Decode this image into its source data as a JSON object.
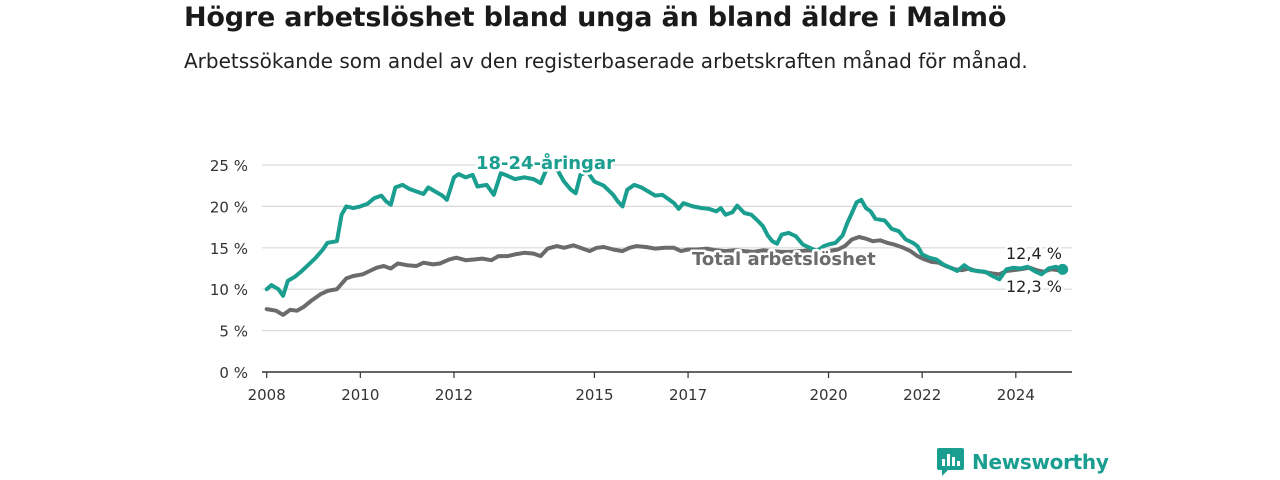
{
  "title": "Högre arbetslöshet bland unga än bland äldre i Malmö",
  "subtitle": "Arbetssökande som andel av den registerbaserade arbetskraften månad för månad.",
  "logo": {
    "text": "Newsworthy",
    "icon": "newsworthy-logo-icon",
    "color": "#1a9e8f"
  },
  "chart_data": {
    "type": "line",
    "title": "Högre arbetslöshet bland unga än bland äldre i Malmö",
    "subtitle": "Arbetssökande som andel av den registerbaserade arbetskraften månad för månad.",
    "xlabel": "",
    "ylabel": "",
    "xlim": [
      2007.9,
      2025.2
    ],
    "ylim": [
      0,
      25
    ],
    "x_ticks": [
      2008,
      2010,
      2012,
      2015,
      2017,
      2020,
      2022,
      2024
    ],
    "y_ticks": [
      {
        "value": 0,
        "label": "0 %"
      },
      {
        "value": 5,
        "label": "5 %"
      },
      {
        "value": 10,
        "label": "10 %"
      },
      {
        "value": 15,
        "label": "15 %"
      },
      {
        "value": 20,
        "label": "20 %"
      },
      {
        "value": 25,
        "label": "25 %"
      }
    ],
    "grid": true,
    "series": [
      {
        "name": "18-24-åringar",
        "color": "#1a9e8f",
        "end_label": "12,4 %",
        "points": [
          [
            2008.0,
            10.0
          ],
          [
            2008.1,
            10.5
          ],
          [
            2008.25,
            10.0
          ],
          [
            2008.35,
            9.2
          ],
          [
            2008.45,
            11.0
          ],
          [
            2008.6,
            11.5
          ],
          [
            2008.75,
            12.2
          ],
          [
            2008.9,
            13.0
          ],
          [
            2009.05,
            13.8
          ],
          [
            2009.2,
            14.8
          ],
          [
            2009.3,
            15.6
          ],
          [
            2009.5,
            15.8
          ],
          [
            2009.6,
            19.0
          ],
          [
            2009.7,
            20.0
          ],
          [
            2009.85,
            19.8
          ],
          [
            2010.0,
            20.0
          ],
          [
            2010.15,
            20.3
          ],
          [
            2010.3,
            21.0
          ],
          [
            2010.45,
            21.3
          ],
          [
            2010.55,
            20.6
          ],
          [
            2010.65,
            20.2
          ],
          [
            2010.75,
            22.3
          ],
          [
            2010.9,
            22.6
          ],
          [
            2011.05,
            22.1
          ],
          [
            2011.2,
            21.8
          ],
          [
            2011.35,
            21.5
          ],
          [
            2011.45,
            22.3
          ],
          [
            2011.6,
            21.8
          ],
          [
            2011.75,
            21.3
          ],
          [
            2011.85,
            20.8
          ],
          [
            2012.0,
            23.5
          ],
          [
            2012.1,
            23.9
          ],
          [
            2012.25,
            23.5
          ],
          [
            2012.4,
            23.8
          ],
          [
            2012.5,
            22.4
          ],
          [
            2012.7,
            22.6
          ],
          [
            2012.85,
            21.4
          ],
          [
            2013.0,
            24.0
          ],
          [
            2013.1,
            23.8
          ],
          [
            2013.3,
            23.3
          ],
          [
            2013.5,
            23.5
          ],
          [
            2013.7,
            23.3
          ],
          [
            2013.85,
            22.8
          ],
          [
            2014.0,
            24.8
          ],
          [
            2014.2,
            24.5
          ],
          [
            2014.35,
            23.0
          ],
          [
            2014.5,
            22.0
          ],
          [
            2014.6,
            21.6
          ],
          [
            2014.7,
            23.8
          ],
          [
            2014.85,
            24.2
          ],
          [
            2015.0,
            23.0
          ],
          [
            2015.2,
            22.5
          ],
          [
            2015.4,
            21.4
          ],
          [
            2015.5,
            20.6
          ],
          [
            2015.6,
            20.0
          ],
          [
            2015.7,
            22.0
          ],
          [
            2015.85,
            22.6
          ],
          [
            2016.0,
            22.3
          ],
          [
            2016.15,
            21.8
          ],
          [
            2016.3,
            21.3
          ],
          [
            2016.45,
            21.4
          ],
          [
            2016.6,
            20.8
          ],
          [
            2016.7,
            20.4
          ],
          [
            2016.8,
            19.7
          ],
          [
            2016.9,
            20.4
          ],
          [
            2017.1,
            20.0
          ],
          [
            2017.3,
            19.8
          ],
          [
            2017.45,
            19.7
          ],
          [
            2017.6,
            19.4
          ],
          [
            2017.7,
            19.8
          ],
          [
            2017.8,
            19.0
          ],
          [
            2017.95,
            19.3
          ],
          [
            2018.05,
            20.1
          ],
          [
            2018.2,
            19.2
          ],
          [
            2018.35,
            19.0
          ],
          [
            2018.5,
            18.2
          ],
          [
            2018.6,
            17.6
          ],
          [
            2018.7,
            16.5
          ],
          [
            2018.8,
            15.8
          ],
          [
            2018.9,
            15.5
          ],
          [
            2019.0,
            16.6
          ],
          [
            2019.15,
            16.8
          ],
          [
            2019.3,
            16.4
          ],
          [
            2019.45,
            15.4
          ],
          [
            2019.6,
            15.0
          ],
          [
            2019.75,
            14.6
          ],
          [
            2019.9,
            15.2
          ],
          [
            2020.0,
            15.4
          ],
          [
            2020.15,
            15.6
          ],
          [
            2020.3,
            16.5
          ],
          [
            2020.4,
            18.0
          ],
          [
            2020.5,
            19.2
          ],
          [
            2020.6,
            20.5
          ],
          [
            2020.7,
            20.8
          ],
          [
            2020.8,
            19.8
          ],
          [
            2020.9,
            19.4
          ],
          [
            2021.0,
            18.5
          ],
          [
            2021.2,
            18.3
          ],
          [
            2021.35,
            17.3
          ],
          [
            2021.5,
            17.0
          ],
          [
            2021.65,
            16.0
          ],
          [
            2021.8,
            15.6
          ],
          [
            2021.9,
            15.2
          ],
          [
            2022.0,
            14.2
          ],
          [
            2022.15,
            13.8
          ],
          [
            2022.3,
            13.6
          ],
          [
            2022.45,
            13.0
          ],
          [
            2022.6,
            12.6
          ],
          [
            2022.75,
            12.2
          ],
          [
            2022.9,
            12.9
          ],
          [
            2023.05,
            12.3
          ],
          [
            2023.2,
            12.2
          ],
          [
            2023.35,
            12.1
          ],
          [
            2023.5,
            11.6
          ],
          [
            2023.65,
            11.2
          ],
          [
            2023.8,
            12.4
          ],
          [
            2023.95,
            12.6
          ],
          [
            2024.1,
            12.5
          ],
          [
            2024.25,
            12.7
          ],
          [
            2024.4,
            12.2
          ],
          [
            2024.55,
            11.8
          ],
          [
            2024.7,
            12.5
          ],
          [
            2024.85,
            12.7
          ],
          [
            2025.0,
            12.4
          ]
        ]
      },
      {
        "name": "Total arbetslöshet",
        "color": "#6b6b6b",
        "end_label": "12,3 %",
        "points": [
          [
            2008.0,
            7.6
          ],
          [
            2008.2,
            7.4
          ],
          [
            2008.35,
            6.9
          ],
          [
            2008.5,
            7.5
          ],
          [
            2008.65,
            7.4
          ],
          [
            2008.8,
            7.9
          ],
          [
            2008.95,
            8.6
          ],
          [
            2009.15,
            9.4
          ],
          [
            2009.3,
            9.8
          ],
          [
            2009.5,
            10.0
          ],
          [
            2009.7,
            11.3
          ],
          [
            2009.85,
            11.6
          ],
          [
            2010.05,
            11.8
          ],
          [
            2010.2,
            12.2
          ],
          [
            2010.35,
            12.6
          ],
          [
            2010.5,
            12.8
          ],
          [
            2010.65,
            12.5
          ],
          [
            2010.8,
            13.1
          ],
          [
            2011.0,
            12.9
          ],
          [
            2011.2,
            12.8
          ],
          [
            2011.35,
            13.2
          ],
          [
            2011.55,
            13.0
          ],
          [
            2011.7,
            13.1
          ],
          [
            2011.9,
            13.6
          ],
          [
            2012.05,
            13.8
          ],
          [
            2012.25,
            13.5
          ],
          [
            2012.45,
            13.6
          ],
          [
            2012.6,
            13.7
          ],
          [
            2012.8,
            13.5
          ],
          [
            2012.95,
            14.0
          ],
          [
            2013.15,
            14.0
          ],
          [
            2013.3,
            14.2
          ],
          [
            2013.5,
            14.4
          ],
          [
            2013.7,
            14.3
          ],
          [
            2013.85,
            14.0
          ],
          [
            2014.0,
            14.9
          ],
          [
            2014.2,
            15.2
          ],
          [
            2014.35,
            15.0
          ],
          [
            2014.55,
            15.3
          ],
          [
            2014.75,
            14.9
          ],
          [
            2014.9,
            14.6
          ],
          [
            2015.05,
            15.0
          ],
          [
            2015.2,
            15.1
          ],
          [
            2015.4,
            14.8
          ],
          [
            2015.6,
            14.6
          ],
          [
            2015.75,
            15.0
          ],
          [
            2015.9,
            15.2
          ],
          [
            2016.1,
            15.1
          ],
          [
            2016.3,
            14.9
          ],
          [
            2016.5,
            15.0
          ],
          [
            2016.7,
            15.0
          ],
          [
            2016.85,
            14.6
          ],
          [
            2017.0,
            14.8
          ],
          [
            2017.2,
            14.8
          ],
          [
            2017.4,
            14.9
          ],
          [
            2017.6,
            14.7
          ],
          [
            2017.8,
            14.6
          ],
          [
            2018.0,
            14.7
          ],
          [
            2018.2,
            14.6
          ],
          [
            2018.4,
            14.5
          ],
          [
            2018.6,
            14.7
          ],
          [
            2018.8,
            14.6
          ],
          [
            2019.0,
            14.5
          ],
          [
            2019.2,
            14.5
          ],
          [
            2019.4,
            14.6
          ],
          [
            2019.6,
            14.7
          ],
          [
            2019.8,
            14.5
          ],
          [
            2020.0,
            14.6
          ],
          [
            2020.2,
            14.8
          ],
          [
            2020.35,
            15.2
          ],
          [
            2020.5,
            16.0
          ],
          [
            2020.65,
            16.3
          ],
          [
            2020.8,
            16.1
          ],
          [
            2020.95,
            15.8
          ],
          [
            2021.1,
            15.9
          ],
          [
            2021.25,
            15.6
          ],
          [
            2021.4,
            15.4
          ],
          [
            2021.6,
            15.0
          ],
          [
            2021.75,
            14.6
          ],
          [
            2021.9,
            14.0
          ],
          [
            2022.05,
            13.6
          ],
          [
            2022.2,
            13.3
          ],
          [
            2022.35,
            13.2
          ],
          [
            2022.5,
            12.8
          ],
          [
            2022.7,
            12.4
          ],
          [
            2022.85,
            12.3
          ],
          [
            2023.0,
            12.5
          ],
          [
            2023.15,
            12.2
          ],
          [
            2023.3,
            12.1
          ],
          [
            2023.5,
            11.9
          ],
          [
            2023.65,
            11.8
          ],
          [
            2023.8,
            12.2
          ],
          [
            2023.95,
            12.3
          ],
          [
            2024.1,
            12.4
          ],
          [
            2024.3,
            12.6
          ],
          [
            2024.45,
            12.3
          ],
          [
            2024.6,
            12.1
          ],
          [
            2024.75,
            12.4
          ],
          [
            2024.9,
            12.3
          ],
          [
            2025.0,
            12.3
          ]
        ]
      }
    ]
  }
}
